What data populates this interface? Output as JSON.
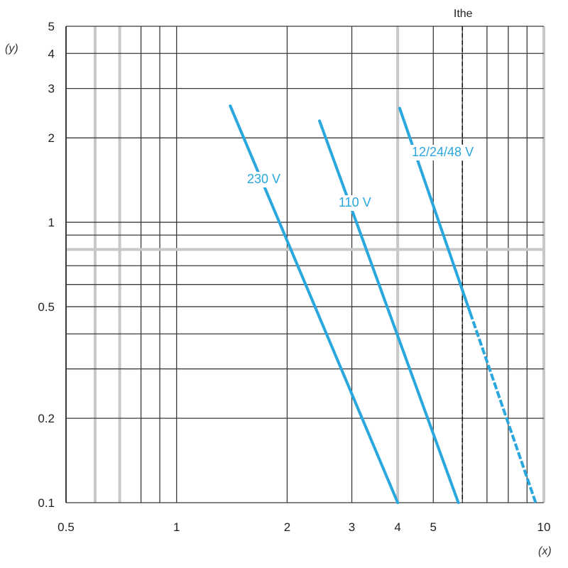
{
  "chart_data": {
    "type": "line",
    "title": "",
    "xlabel": "(x)",
    "ylabel": "(y)",
    "xscale": "log",
    "yscale": "log",
    "xlim": [
      0.5,
      10
    ],
    "ylim": [
      0.1,
      5
    ],
    "grid": true,
    "x_tick_labels": [
      {
        "value": 0.5,
        "label": "0.5"
      },
      {
        "value": 1,
        "label": "1"
      },
      {
        "value": 2,
        "label": "2"
      },
      {
        "value": 3,
        "label": "3"
      },
      {
        "value": 4,
        "label": "4"
      },
      {
        "value": 5,
        "label": "5"
      },
      {
        "value": 10,
        "label": "10"
      }
    ],
    "y_tick_labels": [
      {
        "value": 0.1,
        "label": "0.1"
      },
      {
        "value": 0.2,
        "label": "0.2"
      },
      {
        "value": 0.5,
        "label": "0.5"
      },
      {
        "value": 1,
        "label": "1"
      },
      {
        "value": 2,
        "label": "2"
      },
      {
        "value": 3,
        "label": "3"
      },
      {
        "value": 4,
        "label": "4"
      },
      {
        "value": 5,
        "label": "5"
      }
    ],
    "reference_lines": [
      {
        "axis": "x",
        "value": 6,
        "label": "Ithe",
        "style": "dashed"
      }
    ],
    "series_color": "#2aa7dc",
    "series": [
      {
        "name": "230 V",
        "x": [
          1.4,
          4.0
        ],
        "y": [
          2.6,
          0.1
        ],
        "dashed_after_x": null
      },
      {
        "name": "110 V",
        "x": [
          2.45,
          5.85
        ],
        "y": [
          2.3,
          0.1
        ],
        "dashed_after_x": null
      },
      {
        "name": "12/24/48 V",
        "x": [
          4.05,
          9.5
        ],
        "y": [
          2.55,
          0.1
        ],
        "dashed_after_x": 6.3
      }
    ]
  }
}
